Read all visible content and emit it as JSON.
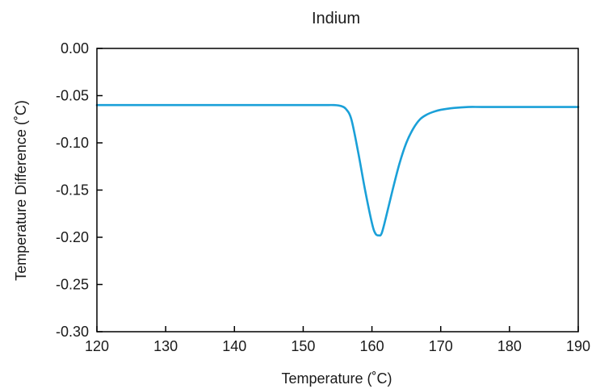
{
  "chart_data": {
    "type": "line",
    "title": "Indium",
    "xlabel": "Temperature (˚C)",
    "ylabel": "Temperature Difference (˚C)",
    "xlim": [
      120,
      190
    ],
    "ylim": [
      -0.3,
      0.0
    ],
    "xticks": [
      "120",
      "130",
      "140",
      "150",
      "160",
      "170",
      "180",
      "190"
    ],
    "yticks": [
      "0.00",
      "-0.05",
      "-0.10",
      "-0.15",
      "-0.20",
      "-0.25",
      "-0.30"
    ],
    "grid": false,
    "line_color": "#1aa0d8",
    "series": [
      {
        "x": [
          120,
          130,
          140,
          150,
          153,
          154.5,
          155.5,
          156.2,
          157,
          158,
          159,
          160,
          160.5,
          161,
          161.4,
          162,
          163,
          164,
          165,
          166,
          167,
          168,
          169,
          170,
          172,
          174,
          176,
          180,
          185,
          190
        ],
        "y": [
          -0.06,
          -0.06,
          -0.06,
          -0.06,
          -0.06,
          -0.06,
          -0.061,
          -0.064,
          -0.075,
          -0.11,
          -0.15,
          -0.185,
          -0.196,
          -0.198,
          -0.196,
          -0.18,
          -0.15,
          -0.122,
          -0.1,
          -0.085,
          -0.075,
          -0.07,
          -0.067,
          -0.065,
          -0.063,
          -0.062,
          -0.062,
          -0.062,
          -0.062,
          -0.062
        ]
      }
    ]
  }
}
